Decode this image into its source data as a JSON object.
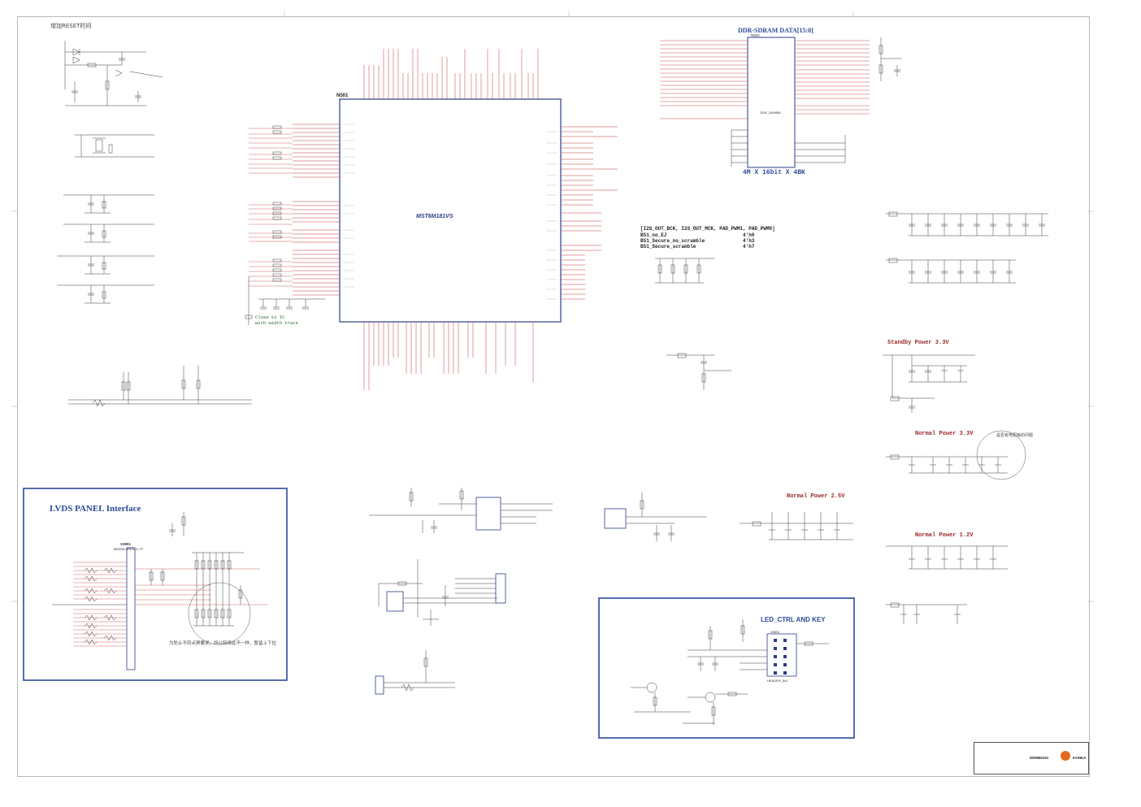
{
  "sheet": {
    "reset_note": "增加RESET时间",
    "main_chip": {
      "ref": "N501",
      "part": "MST6M181VS"
    },
    "ddr": {
      "title": "DDR-SDRAM DATA[15:0]",
      "ref": "N502",
      "part": "DDR_256MBit",
      "capacity": "4M X 16bit X 4BK"
    },
    "option_table": {
      "header": "[I2S_OUT_BCK, I2S_OUT_MCK, PAD_PWM1, PAD_PWM0]",
      "rows": [
        {
          "name": "B51_no_EJ",
          "value": "4'h0"
        },
        {
          "name": "B51_Secure_no_scramble",
          "value": "4'h3"
        },
        {
          "name": "B51_Secure_scramble",
          "value": "4'h7"
        }
      ]
    },
    "close_note": [
      "Close to IC",
      "with width trace"
    ],
    "lvds": {
      "title": "LVDS PANEL Interface",
      "connector_ref": "X3801",
      "connector_part": "BM30B-SRDS-G-TF",
      "note": "为防止不同点屏要求，所以特将此不一样，暂留上下拉"
    },
    "led_ctrl": {
      "title": "LED_CTRL AND KEY",
      "header_ref": "X6601",
      "header_part": "HEADER_5x2"
    },
    "power_sections": [
      {
        "key": "standby",
        "title": "Standby Power 3.3V"
      },
      {
        "key": "normal33",
        "title": "Normal Power 3.3V"
      },
      {
        "key": "normal25",
        "title": "Normal Power 2.5V"
      },
      {
        "key": "normal12",
        "title": "Normal Power 1.2V"
      }
    ],
    "power_note": "是否有电阻板的问题",
    "title_block": {
      "doc_no": "MSRB6191",
      "brand": "KONKA"
    }
  },
  "palette": {
    "wire": "#c43a3a",
    "wire_dark": "#8a2a2a",
    "component": "#3a3a3a",
    "chip_outline": "#2a3d8a",
    "highlight_box": "#2c4a9a",
    "net_green": "#1f6a2a"
  }
}
